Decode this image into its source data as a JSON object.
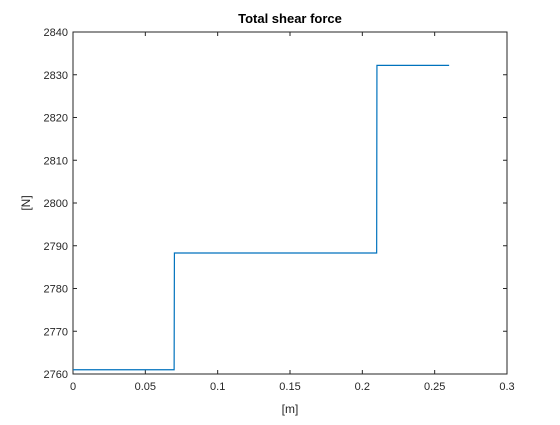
{
  "chart_data": {
    "type": "line",
    "title": "Total shear force",
    "xlabel": "[m]",
    "ylabel": "[N]",
    "xlim": [
      0,
      0.3
    ],
    "ylim": [
      2760,
      2840
    ],
    "xticks": [
      "0",
      "0.05",
      "0.1",
      "0.15",
      "0.2",
      "0.25",
      "0.3"
    ],
    "yticks": [
      "2760",
      "2770",
      "2780",
      "2790",
      "2800",
      "2810",
      "2820",
      "2830",
      "2840"
    ],
    "grid": false,
    "series": [
      {
        "color": "#0072bd",
        "x": [
          0,
          0.0699,
          0.0701,
          0.2099,
          0.2101,
          0.26
        ],
        "y": [
          2761,
          2761,
          2788.3,
          2788.3,
          2832.2,
          2832.2
        ]
      }
    ]
  }
}
